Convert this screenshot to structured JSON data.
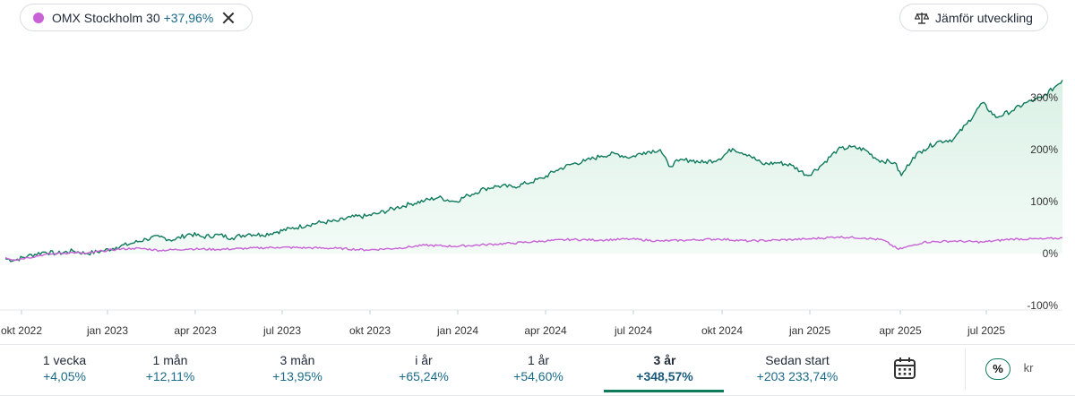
{
  "header": {
    "compare_chip": {
      "name": "OMX Stockholm 30",
      "change": "+37,96%",
      "color": "#c862d6"
    },
    "compare_button_label": "Jämför utveckling"
  },
  "colors": {
    "main_series": "#0f7a5c",
    "compare_series": "#c862d6",
    "area_fill": "#e6f5ee",
    "positive_text": "#1a6b8a"
  },
  "chart_data": {
    "type": "line",
    "title": "",
    "xlabel": "",
    "ylabel": "",
    "x_tick_labels": [
      "okt 2022",
      "jan 2023",
      "apr 2023",
      "jul 2023",
      "okt 2023",
      "jan 2024",
      "apr 2024",
      "jul 2024",
      "okt 2024",
      "jan 2025",
      "apr 2025",
      "jul 2025"
    ],
    "y_tick_labels": [
      "300%",
      "200%",
      "100%",
      "0%",
      "-100%"
    ],
    "y_ticks": [
      300,
      200,
      100,
      0,
      -100
    ],
    "ylim": [
      -100,
      340
    ],
    "x_range": [
      "2022-09-22",
      "2025-09-22"
    ],
    "y_unit": "%",
    "grid": false,
    "series": [
      {
        "name": "",
        "color": "#0f7a5c",
        "fill": true,
        "points": [
          [
            "2022-09-22",
            -10
          ],
          [
            "2022-10-01",
            -13
          ],
          [
            "2022-10-15",
            -5
          ],
          [
            "2022-11-01",
            3
          ],
          [
            "2022-11-15",
            0
          ],
          [
            "2022-12-01",
            5
          ],
          [
            "2022-12-15",
            0
          ],
          [
            "2023-01-01",
            5
          ],
          [
            "2023-01-15",
            12
          ],
          [
            "2023-02-01",
            20
          ],
          [
            "2023-02-15",
            28
          ],
          [
            "2023-03-01",
            32
          ],
          [
            "2023-03-15",
            26
          ],
          [
            "2023-04-01",
            38
          ],
          [
            "2023-04-15",
            32
          ],
          [
            "2023-05-01",
            36
          ],
          [
            "2023-05-15",
            30
          ],
          [
            "2023-06-01",
            38
          ],
          [
            "2023-06-15",
            36
          ],
          [
            "2023-07-01",
            42
          ],
          [
            "2023-07-15",
            48
          ],
          [
            "2023-08-01",
            55
          ],
          [
            "2023-08-15",
            60
          ],
          [
            "2023-09-01",
            62
          ],
          [
            "2023-09-15",
            70
          ],
          [
            "2023-10-01",
            72
          ],
          [
            "2023-10-15",
            78
          ],
          [
            "2023-11-01",
            88
          ],
          [
            "2023-11-15",
            95
          ],
          [
            "2023-12-01",
            102
          ],
          [
            "2023-12-15",
            108
          ],
          [
            "2024-01-01",
            100
          ],
          [
            "2024-01-15",
            112
          ],
          [
            "2024-02-01",
            125
          ],
          [
            "2024-02-15",
            130
          ],
          [
            "2024-03-01",
            128
          ],
          [
            "2024-03-15",
            135
          ],
          [
            "2024-04-01",
            145
          ],
          [
            "2024-04-15",
            160
          ],
          [
            "2024-05-01",
            172
          ],
          [
            "2024-05-15",
            178
          ],
          [
            "2024-06-01",
            188
          ],
          [
            "2024-06-15",
            192
          ],
          [
            "2024-07-01",
            185
          ],
          [
            "2024-07-15",
            195
          ],
          [
            "2024-08-01",
            200
          ],
          [
            "2024-08-10",
            168
          ],
          [
            "2024-08-20",
            178
          ],
          [
            "2024-09-01",
            180
          ],
          [
            "2024-09-15",
            175
          ],
          [
            "2024-10-01",
            182
          ],
          [
            "2024-10-15",
            202
          ],
          [
            "2024-11-01",
            190
          ],
          [
            "2024-11-15",
            172
          ],
          [
            "2024-12-01",
            175
          ],
          [
            "2024-12-15",
            170
          ],
          [
            "2025-01-01",
            150
          ],
          [
            "2025-01-15",
            170
          ],
          [
            "2025-02-01",
            200
          ],
          [
            "2025-02-15",
            205
          ],
          [
            "2025-03-01",
            200
          ],
          [
            "2025-03-15",
            180
          ],
          [
            "2025-04-01",
            175
          ],
          [
            "2025-04-08",
            150
          ],
          [
            "2025-04-20",
            185
          ],
          [
            "2025-05-01",
            200
          ],
          [
            "2025-05-15",
            215
          ],
          [
            "2025-06-01",
            220
          ],
          [
            "2025-06-15",
            250
          ],
          [
            "2025-07-01",
            290
          ],
          [
            "2025-07-15",
            262
          ],
          [
            "2025-08-01",
            275
          ],
          [
            "2025-08-15",
            290
          ],
          [
            "2025-09-01",
            300
          ],
          [
            "2025-09-15",
            322
          ],
          [
            "2025-09-22",
            334
          ]
        ]
      },
      {
        "name": "OMX Stockholm 30",
        "color": "#c862d6",
        "fill": false,
        "points": [
          [
            "2022-09-22",
            -8
          ],
          [
            "2022-10-01",
            -12
          ],
          [
            "2022-10-15",
            -8
          ],
          [
            "2022-11-01",
            -2
          ],
          [
            "2022-11-15",
            0
          ],
          [
            "2022-12-01",
            2
          ],
          [
            "2022-12-15",
            0
          ],
          [
            "2023-01-01",
            5
          ],
          [
            "2023-01-15",
            8
          ],
          [
            "2023-02-01",
            10
          ],
          [
            "2023-02-15",
            9
          ],
          [
            "2023-03-01",
            6
          ],
          [
            "2023-04-01",
            9
          ],
          [
            "2023-05-01",
            8
          ],
          [
            "2023-06-01",
            10
          ],
          [
            "2023-07-01",
            12
          ],
          [
            "2023-08-01",
            11
          ],
          [
            "2023-09-01",
            10
          ],
          [
            "2023-10-01",
            7
          ],
          [
            "2023-11-01",
            10
          ],
          [
            "2023-12-01",
            16
          ],
          [
            "2024-01-01",
            14
          ],
          [
            "2024-02-01",
            17
          ],
          [
            "2024-03-01",
            20
          ],
          [
            "2024-04-01",
            24
          ],
          [
            "2024-05-01",
            27
          ],
          [
            "2024-06-01",
            26
          ],
          [
            "2024-07-01",
            28
          ],
          [
            "2024-08-01",
            24
          ],
          [
            "2024-09-01",
            26
          ],
          [
            "2024-10-01",
            28
          ],
          [
            "2024-11-01",
            24
          ],
          [
            "2024-12-01",
            26
          ],
          [
            "2025-01-01",
            28
          ],
          [
            "2025-02-01",
            32
          ],
          [
            "2025-03-01",
            30
          ],
          [
            "2025-03-20",
            26
          ],
          [
            "2025-04-05",
            8
          ],
          [
            "2025-04-20",
            16
          ],
          [
            "2025-05-01",
            22
          ],
          [
            "2025-06-01",
            24
          ],
          [
            "2025-07-01",
            22
          ],
          [
            "2025-08-01",
            28
          ],
          [
            "2025-09-01",
            28
          ],
          [
            "2025-09-22",
            30
          ]
        ]
      }
    ]
  },
  "periods": [
    {
      "label": "1 vecka",
      "value": "+4,05%",
      "active": false
    },
    {
      "label": "1 mån",
      "value": "+12,11%",
      "active": false
    },
    {
      "label": "3 mån",
      "value": "+13,95%",
      "active": false
    },
    {
      "label": "i år",
      "value": "+65,24%",
      "active": false
    },
    {
      "label": "1 år",
      "value": "+54,60%",
      "active": false
    },
    {
      "label": "3 år",
      "value": "+348,57%",
      "active": true
    },
    {
      "label": "Sedan start",
      "value": "+203 233,74%",
      "active": false
    }
  ],
  "icons": {
    "calendar": "calendar-icon",
    "compare": "scale-icon",
    "close": "close-icon"
  },
  "unit_toggle": {
    "percent_label": "%",
    "currency_label": "kr",
    "selected": "percent"
  }
}
